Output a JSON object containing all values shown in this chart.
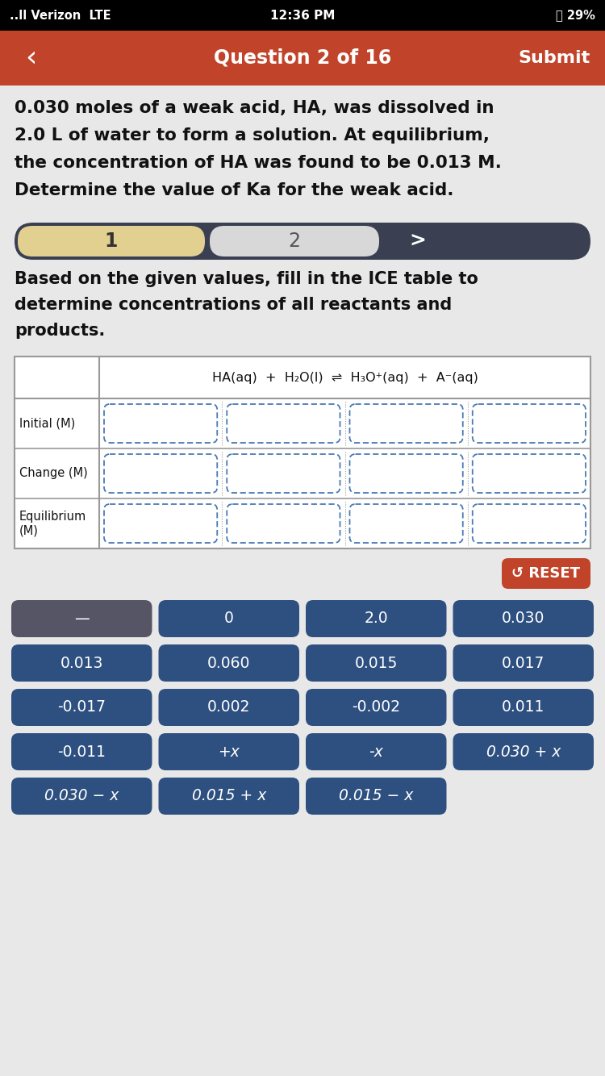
{
  "status_bar_bg": "#000000",
  "status_bar_text": "#ffffff",
  "status_bar_left": "..ll Verizon  LTE",
  "status_bar_center": "12:36 PM",
  "status_bar_right": "⏰ 29%",
  "header_bg": "#c1442a",
  "header_text": "Question 2 of 16",
  "header_submit": "Submit",
  "header_back": "‹",
  "body_bg": "#e8e8e8",
  "question_text1": "0.030 moles of a weak acid, HA, was dissolved in",
  "question_text2": "2.0 L of water to form a solution. At equilibrium,",
  "question_text3": "the concentration of HA was found to be 0.013 M.",
  "question_text4": "Determine the value of Ka for the weak acid.",
  "tab_bg": "#3a3f52",
  "tab1_text": "1",
  "tab1_bg": "#e2d090",
  "tab2_text": "2",
  "tab2_bg": "#d8d8d8",
  "instruction_text1": "Based on the given values, fill in the ICE table to",
  "instruction_text2": "determine concentrations of all reactants and",
  "instruction_text3": "products.",
  "table_bg": "#ffffff",
  "table_border": "#999999",
  "cell_border_color": "#4a7ab5",
  "reset_bg": "#c1442a",
  "reset_text": "↺ RESET",
  "button_dark_bg": "#555566",
  "button_blue_bg": "#2e5080",
  "buttons_row1": [
    "—",
    "0",
    "2.0",
    "0.030"
  ],
  "buttons_row1_dark": [
    true,
    false,
    false,
    false
  ],
  "buttons_row2": [
    "0.013",
    "0.060",
    "0.015",
    "0.017"
  ],
  "buttons_row3": [
    "-0.017",
    "0.002",
    "-0.002",
    "0.011"
  ],
  "buttons_row4": [
    "-0.011",
    "+x",
    "-x",
    "0.030 + x"
  ],
  "buttons_row5": [
    "0.030 − x",
    "0.015 + x",
    "0.015 − x"
  ],
  "btn_text_color": "#ffffff",
  "row_labels": [
    "Initial (M)",
    "Change (M)",
    "Equilibrium\n(M)"
  ]
}
